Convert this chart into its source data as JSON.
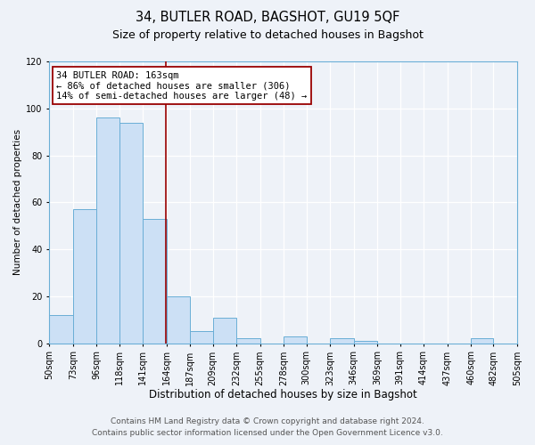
{
  "title": "34, BUTLER ROAD, BAGSHOT, GU19 5QF",
  "subtitle": "Size of property relative to detached houses in Bagshot",
  "xlabel": "Distribution of detached houses by size in Bagshot",
  "ylabel": "Number of detached properties",
  "bin_edges": [
    50,
    73,
    96,
    118,
    141,
    164,
    187,
    209,
    232,
    255,
    278,
    300,
    323,
    346,
    369,
    391,
    414,
    437,
    460,
    482,
    505
  ],
  "counts": [
    12,
    57,
    96,
    94,
    53,
    20,
    5,
    11,
    2,
    0,
    3,
    0,
    2,
    1,
    0,
    0,
    0,
    0,
    2,
    0
  ],
  "bar_color": "#cce0f5",
  "bar_edge_color": "#6aaed6",
  "property_sqm": 163,
  "vline_color": "#990000",
  "annotation_text": "34 BUTLER ROAD: 163sqm\n← 86% of detached houses are smaller (306)\n14% of semi-detached houses are larger (48) →",
  "annotation_box_color": "#ffffff",
  "annotation_box_edgecolor": "#990000",
  "ylim": [
    0,
    120
  ],
  "yticks": [
    0,
    20,
    40,
    60,
    80,
    100,
    120
  ],
  "footer_line1": "Contains HM Land Registry data © Crown copyright and database right 2024.",
  "footer_line2": "Contains public sector information licensed under the Open Government Licence v3.0.",
  "bg_color": "#eef2f8",
  "plot_bg_color": "#eef2f8",
  "grid_color": "#ffffff",
  "title_fontsize": 10.5,
  "subtitle_fontsize": 9,
  "xlabel_fontsize": 8.5,
  "ylabel_fontsize": 7.5,
  "tick_fontsize": 7,
  "annot_fontsize": 7.5,
  "footer_fontsize": 6.5
}
